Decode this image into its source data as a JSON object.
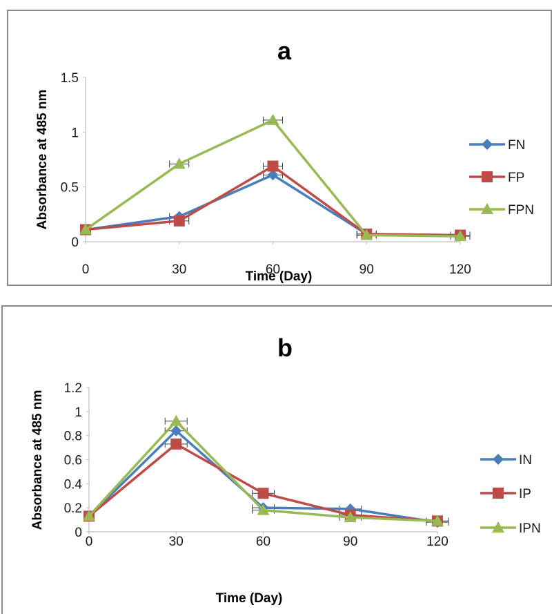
{
  "chart_data": [
    {
      "type": "line",
      "title": "a",
      "xlabel": "Time (Day)",
      "ylabel": "Absorbance at 485 nm",
      "x": [
        0,
        30,
        60,
        90,
        120
      ],
      "x_tick_labels": [
        "0",
        "30",
        "60",
        "90",
        "120"
      ],
      "y_tick_labels": [
        "0",
        "0.5",
        "1",
        "1.5"
      ],
      "ylim": [
        0,
        1.5
      ],
      "grid": false,
      "legend_position": "right",
      "series": [
        {
          "name": "FN",
          "color": "#4a7ebb",
          "marker": "diamond",
          "values": [
            0.11,
            0.23,
            0.61,
            0.07,
            0.06
          ]
        },
        {
          "name": "FP",
          "color": "#be4b48",
          "marker": "square",
          "values": [
            0.11,
            0.19,
            0.69,
            0.07,
            0.06
          ]
        },
        {
          "name": "FPN",
          "color": "#98b954",
          "marker": "triangle",
          "values": [
            0.11,
            0.71,
            1.11,
            0.06,
            0.05
          ]
        }
      ]
    },
    {
      "type": "line",
      "title": "b",
      "xlabel": "Time (Day)",
      "ylabel": "Absorbance at 485 nm",
      "x": [
        0,
        30,
        60,
        90,
        120
      ],
      "x_tick_labels": [
        "0",
        "30",
        "60",
        "90",
        "120"
      ],
      "y_tick_labels": [
        "0",
        "0.2",
        "0.4",
        "0.6",
        "0.8",
        "1",
        "1.2"
      ],
      "ylim": [
        0,
        1.2
      ],
      "grid": false,
      "legend_position": "right",
      "series": [
        {
          "name": "IN",
          "color": "#4a7ebb",
          "marker": "diamond",
          "values": [
            0.13,
            0.84,
            0.2,
            0.19,
            0.08
          ]
        },
        {
          "name": "IP",
          "color": "#be4b48",
          "marker": "square",
          "values": [
            0.13,
            0.73,
            0.32,
            0.14,
            0.09
          ]
        },
        {
          "name": "IPN",
          "color": "#98b954",
          "marker": "triangle",
          "values": [
            0.13,
            0.92,
            0.18,
            0.12,
            0.09
          ]
        }
      ]
    }
  ]
}
